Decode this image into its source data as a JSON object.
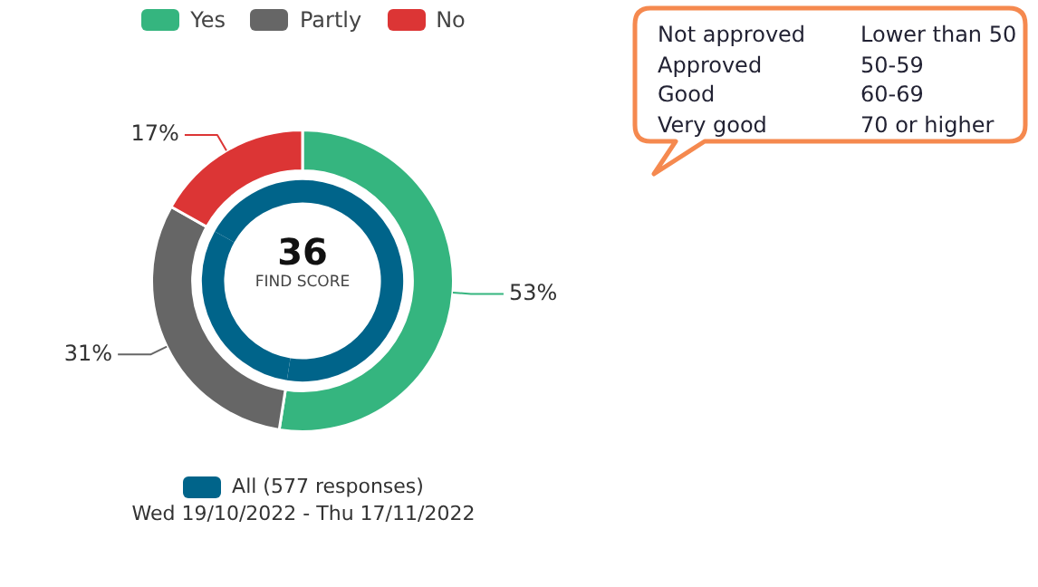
{
  "chart_data": {
    "type": "donut",
    "categories": [
      "Yes",
      "Partly",
      "No"
    ],
    "series": [
      {
        "values": [
          53,
          31,
          17
        ],
        "colors": [
          "#35b57f",
          "#666666",
          "#dc3535"
        ],
        "value_labels": [
          "53%",
          "31%",
          "17%"
        ]
      },
      {
        "name": "All (577 responses)",
        "color": "#00648a",
        "values": [
          53,
          31,
          17
        ]
      }
    ],
    "legend": "top",
    "annotations": [
      "36",
      "FIND SCORE",
      "Wed 19/10/2022 - Thu 17/11/2022",
      "Not approved",
      "Lower than 50",
      "Approved",
      "50-59",
      "Good",
      "60-69",
      "Very good",
      "70 or higher"
    ]
  }
}
